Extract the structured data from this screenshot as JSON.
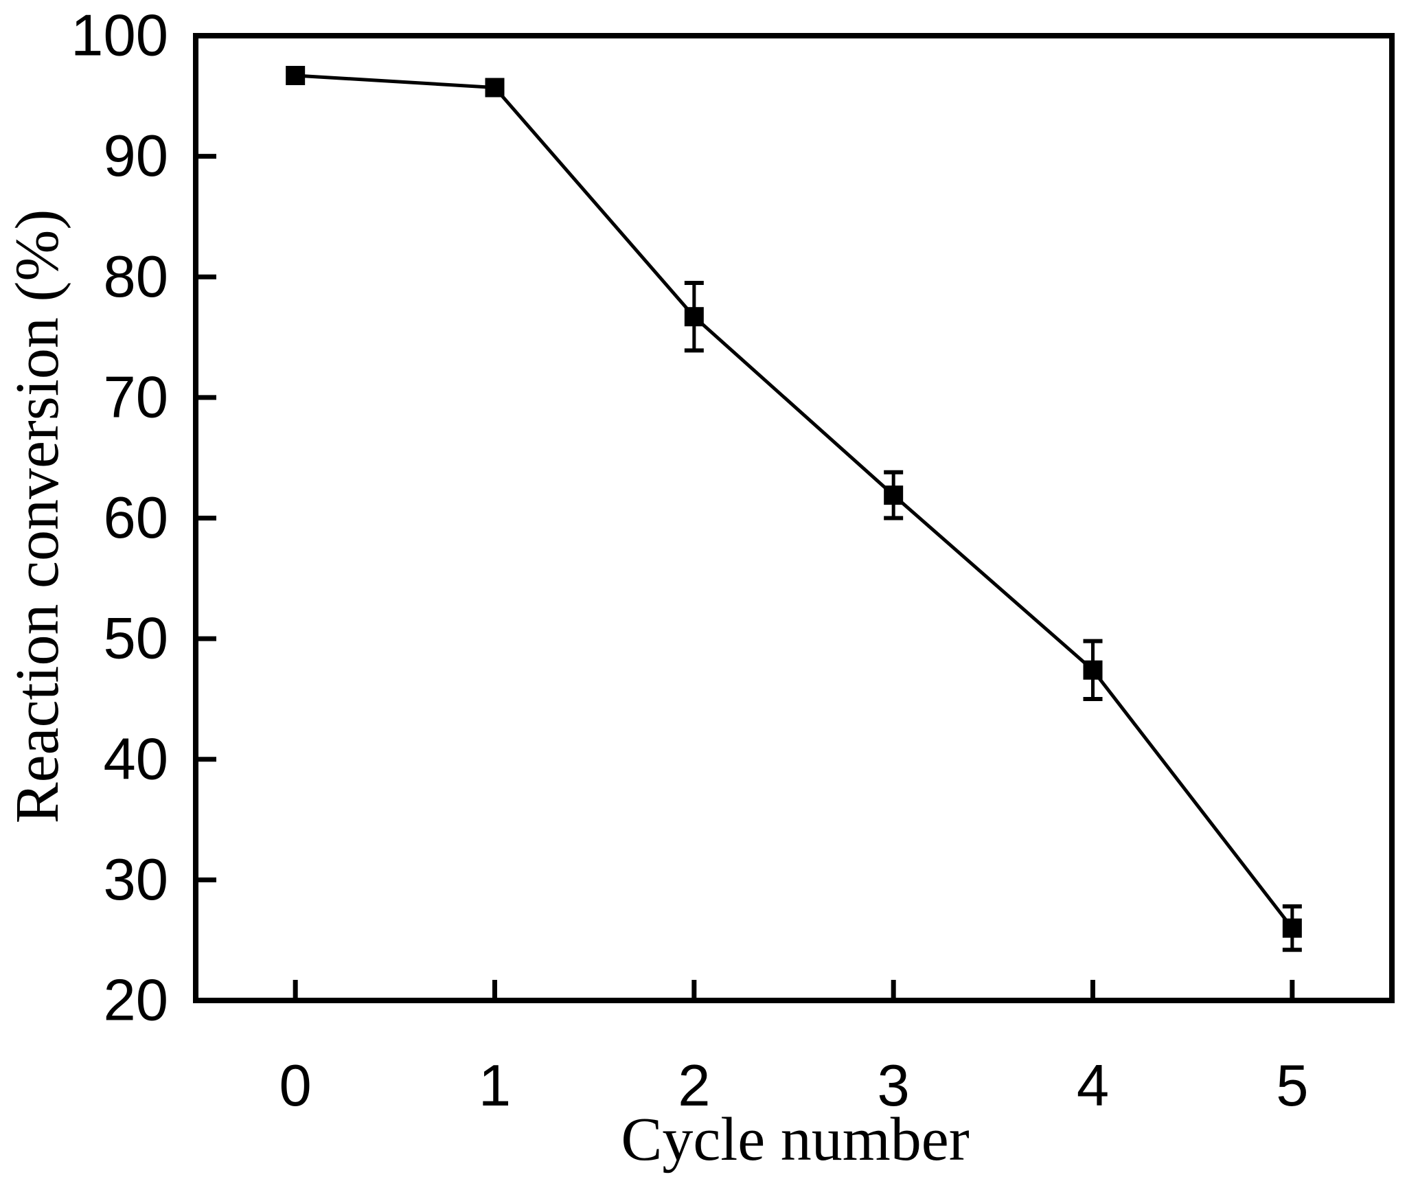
{
  "figure": {
    "background_color": "#ffffff",
    "ink_color": "#000000"
  },
  "chart_data": {
    "type": "line",
    "title": "",
    "xlabel": "Cycle number",
    "ylabel": "Reaction conversion (%)",
    "x": [
      0,
      1,
      2,
      3,
      4,
      5
    ],
    "series": [
      {
        "name": "Reaction conversion",
        "values": [
          96.7,
          95.7,
          76.7,
          61.9,
          47.4,
          26.0
        ],
        "errors": [
          0,
          0,
          2.8,
          1.9,
          2.4,
          1.8
        ],
        "marker": "filled-square",
        "color": "#000000"
      }
    ],
    "xlim": [
      -0.5,
      5.5
    ],
    "ylim": [
      20,
      100
    ],
    "x_ticks": [
      0,
      1,
      2,
      3,
      4,
      5
    ],
    "x_tick_labels": [
      "0",
      "1",
      "2",
      "3",
      "4",
      "5"
    ],
    "y_ticks": [
      20,
      30,
      40,
      50,
      60,
      70,
      80,
      90,
      100
    ],
    "y_tick_labels": [
      "20",
      "30",
      "40",
      "50",
      "60",
      "70",
      "80",
      "90",
      "100"
    ],
    "y_tick_marks": [
      30,
      40,
      50,
      60,
      70,
      80,
      90
    ],
    "grid": false,
    "legend": "none",
    "error_bars": true,
    "frame": "full-box",
    "tick_direction": "in"
  }
}
